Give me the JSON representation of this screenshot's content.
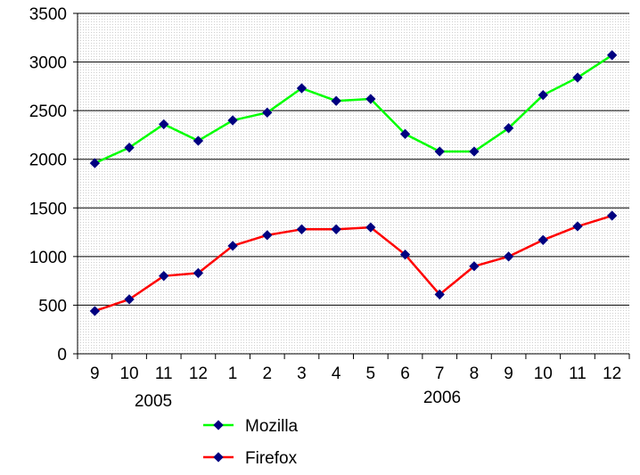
{
  "chart_data": {
    "type": "line",
    "categories": [
      "9",
      "10",
      "11",
      "12",
      "1",
      "2",
      "3",
      "4",
      "5",
      "6",
      "7",
      "8",
      "9",
      "10",
      "11",
      "12"
    ],
    "year_labels": [
      "2005",
      "2006"
    ],
    "ylim": [
      0,
      3500
    ],
    "yticks": [
      "0",
      "500",
      "1000",
      "1500",
      "2000",
      "2500",
      "3000",
      "3500"
    ],
    "grid": true,
    "legend_position": "bottom",
    "series": [
      {
        "name": "Mozilla",
        "color": "#00ff00",
        "marker_color": "#000080",
        "values": [
          1960,
          2120,
          2360,
          2190,
          2400,
          2480,
          2730,
          2600,
          2620,
          2260,
          2080,
          2080,
          2320,
          2660,
          2840,
          3070
        ]
      },
      {
        "name": "Firefox",
        "color": "#ff0000",
        "marker_color": "#000080",
        "values": [
          440,
          560,
          800,
          830,
          1110,
          1220,
          1280,
          1280,
          1300,
          1020,
          610,
          900,
          1000,
          1170,
          1310,
          1420
        ]
      }
    ]
  }
}
